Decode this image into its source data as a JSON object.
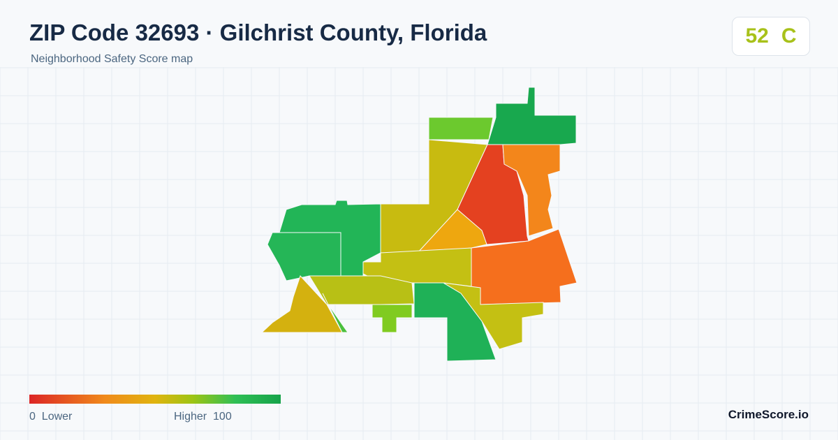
{
  "header": {
    "title": "ZIP Code 32693 · Gilchrist County, Florida",
    "subtitle": "Neighborhood Safety Score map"
  },
  "score": {
    "value": 52,
    "grade": "C"
  },
  "legend": {
    "min": 0,
    "min_label": "Lower",
    "max_label": "Higher",
    "max": 100
  },
  "brand": "CrimeScore.io"
}
